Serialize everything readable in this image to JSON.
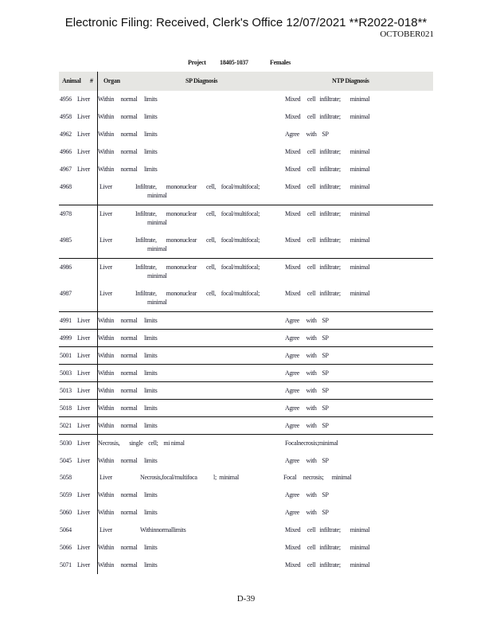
{
  "header": {
    "title": "Electronic Filing: Received, Clerk's Office 12/07/2021 **R2022-018**",
    "subtitle": "OCTOBER021"
  },
  "project": {
    "label": "Project",
    "number": "18405-1037",
    "group": "Females"
  },
  "columns": {
    "animal": "Animal",
    "num": "#",
    "organ": "Organ",
    "sp": "SP   Diagnosis",
    "ntp": "NTP    Diagnosis"
  },
  "rows": [
    {
      "animal": "4956",
      "organ": "Liver",
      "sp": "Within     normal     limits",
      "ntp": "Mixed     cell   infiltrate;       minimal",
      "layout": "inline"
    },
    {
      "animal": "4958",
      "organ": "Liver",
      "sp": "Within     normal     limits",
      "ntp": "Mixed     cell   infiltrate;       minimal",
      "layout": "inline"
    },
    {
      "animal": "4962",
      "organ": "Liver",
      "sp": "Within     normal     limits",
      "ntp": "Agree     with    SP",
      "layout": "inline"
    },
    {
      "animal": "4966",
      "organ": "Liver",
      "sp": "Within     normal     limits",
      "ntp": "Mixed     cell   infiltrate;       minimal",
      "layout": "inline"
    },
    {
      "animal": "4967",
      "organ": "Liver",
      "sp": "Within     normal     limits",
      "ntp": "Mixed     cell   infiltrate;       minimal",
      "layout": "inline"
    },
    {
      "animal": "4968",
      "organ": "Liver",
      "sp": "Infiltrate,       mononuclear       cell,    focal/multifocal;",
      "sp2": "minimal",
      "ntp": "Mixed     cell   infiltrate;       minimal",
      "layout": "wrap"
    },
    {
      "animal": "4978",
      "organ": "Liver",
      "sp": "Infiltrate,       mononuclear       cell,    focal/multifocal;",
      "sp2": "minimal",
      "ntp": "Mixed     cell   infiltrate;       minimal",
      "layout": "wrap"
    },
    {
      "animal": "4985",
      "organ": "Liver",
      "sp": "Infiltrate,       mononuclear       cell,    focal/multifocal;",
      "sp2": "minimal",
      "ntp": "Mixed     cell   infiltrate;       minimal",
      "layout": "wrap"
    },
    {
      "animal": "4986",
      "organ": "Liver",
      "sp": "Infiltrate,       mononuclear       cell,    focal/multifocal;",
      "sp2": "minimal",
      "ntp": "Mixed     cell   infiltrate;       minimal",
      "layout": "wrap"
    },
    {
      "animal": "4987",
      "organ": "Liver",
      "sp": "Infiltrate,       mononuclear       cell,    focal/multifocal;",
      "sp2": "minimal",
      "ntp": "Mixed     cell   infiltrate;       minimal",
      "layout": "wrap"
    },
    {
      "animal": "4991",
      "organ": "Liver",
      "sp": "Within     normal     limits",
      "ntp": "Agree     with    SP",
      "layout": "inline"
    },
    {
      "animal": "4999",
      "organ": "Liver",
      "sp": "Within     normal     limits",
      "ntp": "Agree     with    SP",
      "layout": "inline"
    },
    {
      "animal": "5001",
      "organ": "Liver",
      "sp": "Within     normal     limits",
      "ntp": "Agree     with    SP",
      "layout": "inline"
    },
    {
      "animal": "5003",
      "organ": "Liver",
      "sp": "Within     normal     limits",
      "ntp": "Agree     with    SP",
      "layout": "inline"
    },
    {
      "animal": "5013",
      "organ": "Liver",
      "sp": "Within     normal     limits",
      "ntp": "Agree     with    SP",
      "layout": "inline"
    },
    {
      "animal": "5018",
      "organ": "Liver",
      "sp": "Within     normal     limits",
      "ntp": "Agree     with    SP",
      "layout": "inline"
    },
    {
      "animal": "5021",
      "organ": "Liver",
      "sp": "Within     normal     limits",
      "ntp": "Agree     with    SP",
      "layout": "inline"
    },
    {
      "animal": "5030",
      "organ": "Liver",
      "sp": "Necrosis,       single    cell;    mi nimal",
      "ntp": "Focalnecrosis;minimal",
      "layout": "inline"
    },
    {
      "animal": "5045",
      "organ": "Liver",
      "sp": "Within     normal     limits",
      "ntp": "Agree     with    SP",
      "layout": "inline"
    },
    {
      "animal": "5058",
      "organ": "Liver",
      "sp": "Necrosis,focal/multifoca            l;  minimal",
      "ntp": "Focal     necrosis;      minimal",
      "layout": "indent"
    },
    {
      "animal": "5059",
      "organ": "Liver",
      "sp": "Within     normal     limits",
      "ntp": "Agree     with    SP",
      "layout": "inline"
    },
    {
      "animal": "5060",
      "organ": "Liver",
      "sp": "Within     normal     limits",
      "ntp": "Agree     with    SP",
      "layout": "inline"
    },
    {
      "animal": "5064",
      "organ": "Liver",
      "sp": "Withinnormallimits",
      "ntp": "Mixed     cell   infiltrate;       minimal",
      "layout": "indent"
    },
    {
      "animal": "5066",
      "organ": "Liver",
      "sp": "Within     normal     limits",
      "ntp": "Mixed     cell   infiltrate;       minimal",
      "layout": "inline"
    },
    {
      "animal": "5071",
      "organ": "Liver",
      "sp": "Within     normal     limits",
      "ntp": "Mixed     cell   infiltrate;       minimal",
      "layout": "inline"
    }
  ],
  "footer": {
    "page": "D-39"
  }
}
